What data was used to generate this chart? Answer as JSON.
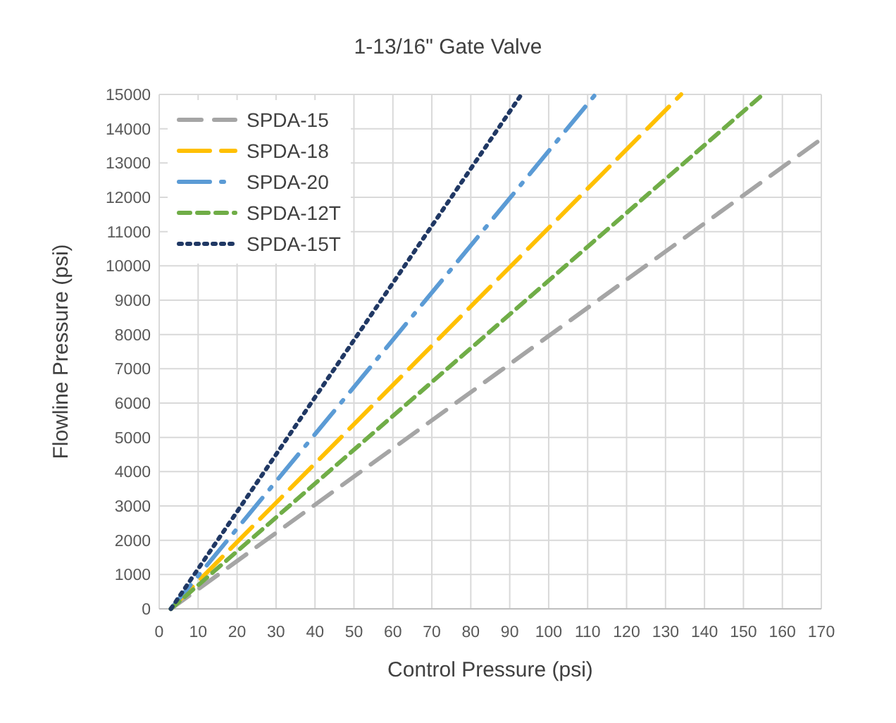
{
  "chart_data": {
    "type": "line",
    "title": "1-13/16\"  Gate Valve",
    "xlabel": "Control Pressure (psi)",
    "ylabel": "Flowline Pressure (psi)",
    "xlim": [
      0,
      170
    ],
    "xticks": [
      0,
      10,
      20,
      30,
      40,
      50,
      60,
      70,
      80,
      90,
      100,
      110,
      120,
      130,
      140,
      150,
      160,
      170
    ],
    "ylim": [
      0,
      15000
    ],
    "yticks": [
      0,
      1000,
      2000,
      3000,
      4000,
      5000,
      6000,
      7000,
      8000,
      9000,
      10000,
      11000,
      12000,
      13000,
      14000,
      15000
    ],
    "grid": true,
    "legend": "top left",
    "marker": "none",
    "series": [
      {
        "name": "SPDA-15",
        "color": "#a5a5a5",
        "line_style": "dashed",
        "x": [
          3,
          170
        ],
        "values": [
          0,
          13700
        ]
      },
      {
        "name": "SPDA-18",
        "color": "#ffc000",
        "line_style": "dashed",
        "x": [
          3,
          134
        ],
        "values": [
          0,
          15000
        ]
      },
      {
        "name": "SPDA-20",
        "color": "#5b9bd5",
        "line_style": "dashed",
        "x": [
          3,
          112
        ],
        "values": [
          0,
          15000
        ]
      },
      {
        "name": "SPDA-12T",
        "color": "#70ad47",
        "line_style": "dashed",
        "x": [
          3,
          155
        ],
        "values": [
          0,
          15000
        ]
      },
      {
        "name": "SPDA-15T",
        "color": "#203864",
        "line_style": "dotted",
        "x": [
          3,
          93
        ],
        "values": [
          0,
          15000
        ]
      }
    ]
  }
}
